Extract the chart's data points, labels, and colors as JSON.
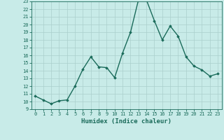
{
  "title": "",
  "xlabel": "Humidex (Indice chaleur)",
  "ylabel": "",
  "x": [
    0,
    1,
    2,
    3,
    4,
    5,
    6,
    7,
    8,
    9,
    10,
    11,
    12,
    13,
    14,
    15,
    16,
    17,
    18,
    19,
    20,
    21,
    22,
    23
  ],
  "y": [
    10.7,
    10.2,
    9.7,
    10.1,
    10.2,
    12.0,
    14.2,
    15.8,
    14.5,
    14.4,
    13.1,
    16.3,
    19.0,
    23.2,
    23.2,
    20.5,
    18.0,
    19.8,
    18.5,
    15.8,
    14.6,
    14.1,
    13.3,
    13.6
  ],
  "line_color": "#1a6b5a",
  "marker": "D",
  "marker_size": 1.8,
  "bg_color": "#c8ebe8",
  "grid_color": "#aacfcc",
  "ylim": [
    9,
    23
  ],
  "xlim": [
    -0.5,
    23.5
  ],
  "yticks": [
    9,
    10,
    11,
    12,
    13,
    14,
    15,
    16,
    17,
    18,
    19,
    20,
    21,
    22,
    23
  ],
  "xticks": [
    0,
    1,
    2,
    3,
    4,
    5,
    6,
    7,
    8,
    9,
    10,
    11,
    12,
    13,
    14,
    15,
    16,
    17,
    18,
    19,
    20,
    21,
    22,
    23
  ],
  "tick_fontsize": 5.0,
  "label_fontsize": 6.5,
  "line_width": 1.0
}
